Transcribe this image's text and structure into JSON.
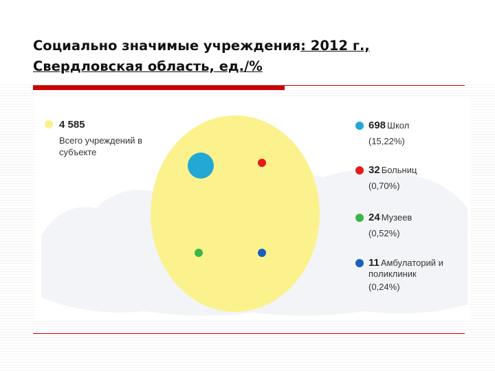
{
  "title": {
    "part1": "Социально значимые учреждения",
    "part2": ": 2012 г.,",
    "line2": "Свердловская область, ед./%"
  },
  "chart_data": {
    "type": "bubble",
    "total": {
      "value": "4 585",
      "label": "Всего учреждений в субъекте",
      "color": "#fbf28e"
    },
    "series": [
      {
        "value": "698",
        "label": "Школ",
        "percent": "(15,22%)",
        "color": "#23a8d6",
        "numeric": 698
      },
      {
        "value": "32",
        "label": "Больниц",
        "percent": "(0,70%)",
        "color": "#e41b1b",
        "numeric": 32
      },
      {
        "value": "24",
        "label": "Музеев",
        "percent": "(0,52%)",
        "color": "#3cb54a",
        "numeric": 24
      },
      {
        "value": "11",
        "label": "Амбулаторий и",
        "label2": "поликлиник",
        "percent": "(0,24%)",
        "color": "#1a5fbf",
        "numeric": 11
      }
    ]
  }
}
